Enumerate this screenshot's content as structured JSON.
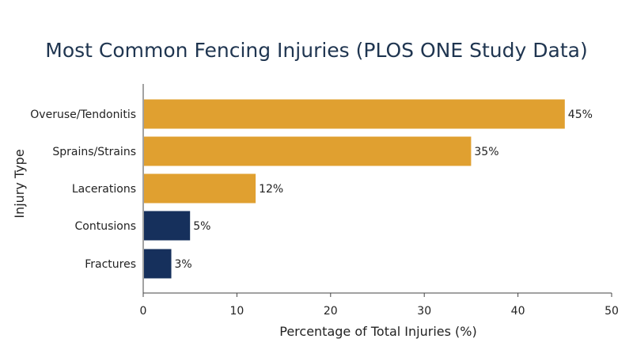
{
  "chart_data": {
    "type": "bar",
    "orientation": "horizontal",
    "title": "Most Common Fencing Injuries (PLOS ONE Study Data)",
    "xlabel": "Percentage of Total Injuries (%)",
    "ylabel": "Injury Type",
    "categories": [
      "Overuse/Tendonitis",
      "Sprains/Strains",
      "Lacerations",
      "Contusions",
      "Fractures"
    ],
    "values": [
      45,
      35,
      12,
      5,
      3
    ],
    "value_labels": [
      "45%",
      "35%",
      "12%",
      "5%",
      "3%"
    ],
    "bar_colors": [
      "#e0a030",
      "#e0a030",
      "#e0a030",
      "#16305c",
      "#16305c"
    ],
    "xlim": [
      0,
      50
    ],
    "xticks": [
      0,
      10,
      20,
      30,
      40,
      50
    ],
    "grid": false,
    "legend": "none"
  },
  "colors": {
    "primary": "#e0a030",
    "secondary": "#16305c",
    "title": "#1f3550",
    "axis": "#444444"
  }
}
